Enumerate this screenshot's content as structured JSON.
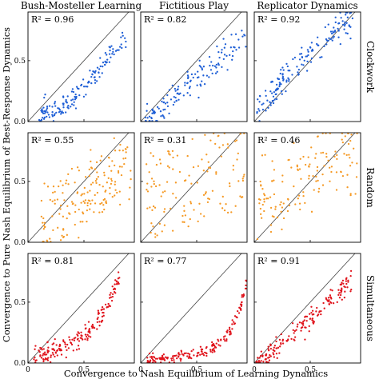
{
  "chart_data": {
    "type": "scatter",
    "xlabel": "Convergence to Nash Equilibrium of Learning Dynamics",
    "ylabel": "Convergence to Pure Nash Equilibrium of Best-Response Dynamics",
    "columns": [
      "Bush-Mosteller Learning",
      "Fictitious Play",
      "Replicator Dynamics"
    ],
    "rows": [
      {
        "name": "Clockwork",
        "color": "#1f5fd6"
      },
      {
        "name": "Random",
        "color": "#f59a26"
      },
      {
        "name": "Simultaneous",
        "color": "#e0141c"
      }
    ],
    "xlim": [
      0,
      0.95
    ],
    "ylim": [
      0,
      0.9
    ],
    "x_ticks": [
      0,
      0.5
    ],
    "y_ticks": [
      0.0,
      0.5
    ],
    "x_tick_labels": [
      "0",
      "0.5"
    ],
    "y_tick_labels": [
      "0.0",
      "0.5"
    ],
    "diagonal": true,
    "panels": [
      {
        "row": 0,
        "col": 0,
        "r2_label": "R² = 0.96",
        "r2": 0.96,
        "shape": "convex_tight",
        "n": 150,
        "seed": 11
      },
      {
        "row": 0,
        "col": 1,
        "r2_label": "R² = 0.82",
        "r2": 0.82,
        "shape": "linear_below",
        "n": 140,
        "seed": 12
      },
      {
        "row": 0,
        "col": 2,
        "r2_label": "R² = 0.92",
        "r2": 0.92,
        "shape": "concave_above",
        "n": 160,
        "seed": 13
      },
      {
        "row": 1,
        "col": 0,
        "r2_label": "R² = 0.55",
        "r2": 0.55,
        "shape": "random_spread",
        "n": 170,
        "seed": 21
      },
      {
        "row": 1,
        "col": 1,
        "r2_label": "R² = 0.31",
        "r2": 0.31,
        "shape": "random_wide",
        "n": 130,
        "seed": 22
      },
      {
        "row": 1,
        "col": 2,
        "r2_label": "R² = 0.46",
        "r2": 0.46,
        "shape": "random_upper",
        "n": 140,
        "seed": 23
      },
      {
        "row": 2,
        "col": 0,
        "r2_label": "R² = 0.81",
        "r2": 0.81,
        "shape": "convex_steep",
        "n": 180,
        "seed": 31
      },
      {
        "row": 2,
        "col": 1,
        "r2_label": "R² = 0.77",
        "r2": 0.77,
        "shape": "convex_sharp",
        "n": 180,
        "seed": 32
      },
      {
        "row": 2,
        "col": 2,
        "r2_label": "R² = 0.91",
        "r2": 0.91,
        "shape": "linear_tight",
        "n": 170,
        "seed": 33
      }
    ]
  }
}
